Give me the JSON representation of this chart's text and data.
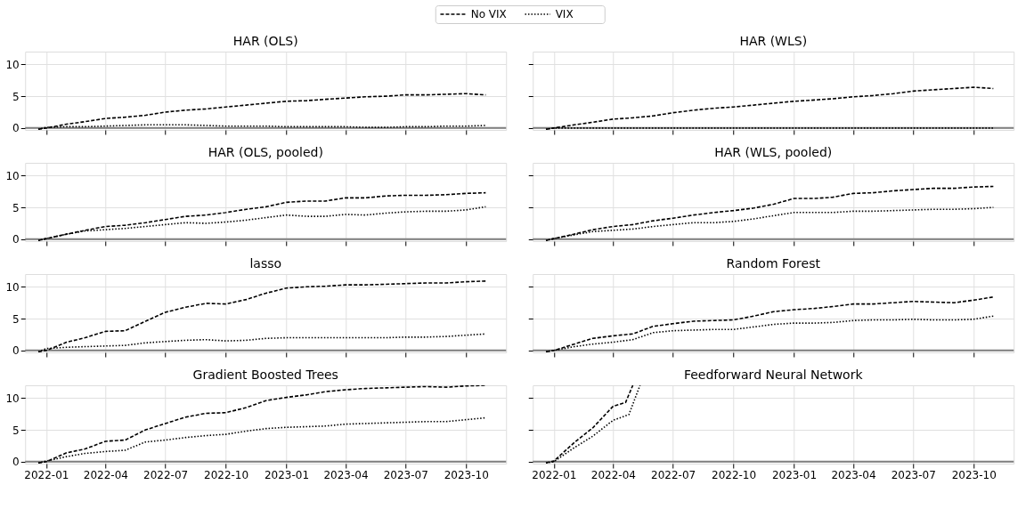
{
  "chart_data": [
    {
      "type": "line",
      "title": "HAR (OLS)",
      "legend": "top",
      "grid": true,
      "tick_labels": "y",
      "marker": "none",
      "xlim": [
        "2021-11-30",
        "2023-12-01"
      ],
      "ylim": [
        -0.3,
        12
      ],
      "xticks": [
        "2022-01",
        "2022-04",
        "2022-07",
        "2022-10",
        "2023-01",
        "2023-04",
        "2023-07",
        "2023-10"
      ],
      "yticks": [
        0,
        5,
        10
      ],
      "ref_lines": [
        {
          "axis": "y",
          "value": 0,
          "label": null,
          "color": "#808080"
        }
      ],
      "x": [
        "2021-12-20",
        "2022-01-01",
        "2022-02-01",
        "2022-03-01",
        "2022-04-01",
        "2022-05-01",
        "2022-06-01",
        "2022-07-01",
        "2022-08-01",
        "2022-09-01",
        "2022-10-01",
        "2022-11-01",
        "2022-12-01",
        "2023-01-01",
        "2023-02-01",
        "2023-03-01",
        "2023-04-01",
        "2023-05-01",
        "2023-06-01",
        "2023-07-01",
        "2023-08-01",
        "2023-09-01",
        "2023-10-01",
        "2023-10-31"
      ],
      "series": [
        {
          "name": "No VIX",
          "color": "#000000",
          "line_style": "dashed",
          "values": [
            -0.2,
            0.0,
            0.6,
            1.0,
            1.5,
            1.7,
            2.0,
            2.5,
            2.8,
            3.0,
            3.3,
            3.6,
            3.9,
            4.2,
            4.3,
            4.5,
            4.7,
            4.9,
            5.0,
            5.2,
            5.2,
            5.3,
            5.4,
            5.2
          ]
        },
        {
          "name": "VIX",
          "color": "#000000",
          "line_style": "dotted",
          "values": [
            -0.2,
            0.1,
            0.2,
            0.2,
            0.3,
            0.4,
            0.5,
            0.5,
            0.5,
            0.4,
            0.3,
            0.3,
            0.3,
            0.2,
            0.2,
            0.2,
            0.2,
            0.1,
            0.1,
            0.2,
            0.2,
            0.3,
            0.3,
            0.4
          ]
        }
      ]
    },
    {
      "type": "line",
      "title": "HAR (WLS)",
      "grid": true,
      "tick_labels": false,
      "marker": "none",
      "xlim": [
        "2021-11-30",
        "2023-12-01"
      ],
      "ylim": [
        -0.3,
        12
      ],
      "xticks": [
        "2022-01",
        "2022-04",
        "2022-07",
        "2022-10",
        "2023-01",
        "2023-04",
        "2023-07",
        "2023-10"
      ],
      "yticks": [
        0,
        5,
        10
      ],
      "ref_lines": [
        {
          "axis": "y",
          "value": 0,
          "label": null,
          "color": "#808080"
        }
      ],
      "x": [
        "2021-12-20",
        "2022-01-01",
        "2022-02-01",
        "2022-03-01",
        "2022-04-01",
        "2022-05-01",
        "2022-06-01",
        "2022-07-01",
        "2022-08-01",
        "2022-09-01",
        "2022-10-01",
        "2022-11-01",
        "2022-12-01",
        "2023-01-01",
        "2023-02-01",
        "2023-03-01",
        "2023-04-01",
        "2023-05-01",
        "2023-06-01",
        "2023-07-01",
        "2023-08-01",
        "2023-09-01",
        "2023-10-01",
        "2023-10-31"
      ],
      "series": [
        {
          "name": "No VIX",
          "color": "#000000",
          "line_style": "dashed",
          "values": [
            -0.2,
            0.0,
            0.5,
            0.9,
            1.4,
            1.6,
            1.9,
            2.4,
            2.8,
            3.1,
            3.3,
            3.6,
            3.9,
            4.2,
            4.4,
            4.6,
            4.9,
            5.1,
            5.4,
            5.8,
            6.0,
            6.2,
            6.4,
            6.2
          ]
        },
        {
          "name": "VIX",
          "color": "#000000",
          "line_style": "dotted",
          "values": [
            -0.2,
            0.0,
            0.0,
            0.0,
            0.0,
            0.0,
            0.0,
            0.0,
            0.0,
            0.0,
            0.0,
            0.0,
            0.0,
            0.0,
            0.0,
            0.0,
            0.0,
            0.0,
            0.0,
            0.0,
            0.0,
            0.0,
            0.0,
            0.0
          ]
        }
      ]
    },
    {
      "type": "line",
      "title": "HAR (OLS, pooled)",
      "grid": true,
      "tick_labels": "y",
      "marker": "none",
      "xlim": [
        "2021-11-30",
        "2023-12-01"
      ],
      "ylim": [
        -0.3,
        12
      ],
      "xticks": [
        "2022-01",
        "2022-04",
        "2022-07",
        "2022-10",
        "2023-01",
        "2023-04",
        "2023-07",
        "2023-10"
      ],
      "yticks": [
        0,
        5,
        10
      ],
      "ref_lines": [
        {
          "axis": "y",
          "value": 0,
          "label": null,
          "color": "#808080"
        }
      ],
      "x": [
        "2021-12-20",
        "2022-01-01",
        "2022-02-01",
        "2022-03-01",
        "2022-04-01",
        "2022-05-01",
        "2022-06-01",
        "2022-07-01",
        "2022-08-01",
        "2022-09-01",
        "2022-10-01",
        "2022-11-01",
        "2022-12-01",
        "2023-01-01",
        "2023-02-01",
        "2023-03-01",
        "2023-04-01",
        "2023-05-01",
        "2023-06-01",
        "2023-07-01",
        "2023-08-01",
        "2023-09-01",
        "2023-10-01",
        "2023-10-31"
      ],
      "series": [
        {
          "name": "No VIX",
          "color": "#000000",
          "line_style": "dashed",
          "values": [
            -0.2,
            0.1,
            0.8,
            1.4,
            2.0,
            2.2,
            2.6,
            3.1,
            3.6,
            3.8,
            4.2,
            4.7,
            5.1,
            5.8,
            6.0,
            6.0,
            6.5,
            6.5,
            6.8,
            6.9,
            6.9,
            7.0,
            7.2,
            7.3
          ]
        },
        {
          "name": "VIX",
          "color": "#000000",
          "line_style": "dotted",
          "values": [
            -0.2,
            0.1,
            0.8,
            1.3,
            1.5,
            1.7,
            2.0,
            2.3,
            2.6,
            2.5,
            2.7,
            3.0,
            3.4,
            3.8,
            3.6,
            3.6,
            3.9,
            3.8,
            4.1,
            4.3,
            4.4,
            4.4,
            4.6,
            5.1
          ]
        }
      ]
    },
    {
      "type": "line",
      "title": "HAR (WLS, pooled)",
      "grid": true,
      "tick_labels": false,
      "marker": "none",
      "xlim": [
        "2021-11-30",
        "2023-12-01"
      ],
      "ylim": [
        -0.3,
        12
      ],
      "xticks": [
        "2022-01",
        "2022-04",
        "2022-07",
        "2022-10",
        "2023-01",
        "2023-04",
        "2023-07",
        "2023-10"
      ],
      "yticks": [
        0,
        5,
        10
      ],
      "ref_lines": [
        {
          "axis": "y",
          "value": 0,
          "label": null,
          "color": "#808080"
        }
      ],
      "x": [
        "2021-12-20",
        "2022-01-01",
        "2022-02-01",
        "2022-03-01",
        "2022-04-01",
        "2022-05-01",
        "2022-06-01",
        "2022-07-01",
        "2022-08-01",
        "2022-09-01",
        "2022-10-01",
        "2022-11-01",
        "2022-12-01",
        "2023-01-01",
        "2023-02-01",
        "2023-03-01",
        "2023-04-01",
        "2023-05-01",
        "2023-06-01",
        "2023-07-01",
        "2023-08-01",
        "2023-09-01",
        "2023-10-01",
        "2023-10-31"
      ],
      "series": [
        {
          "name": "No VIX",
          "color": "#000000",
          "line_style": "dashed",
          "values": [
            -0.2,
            0.1,
            0.8,
            1.5,
            2.0,
            2.3,
            2.9,
            3.3,
            3.8,
            4.2,
            4.5,
            4.9,
            5.5,
            6.4,
            6.4,
            6.6,
            7.2,
            7.3,
            7.6,
            7.8,
            8.0,
            8.0,
            8.2,
            8.3
          ]
        },
        {
          "name": "VIX",
          "color": "#000000",
          "line_style": "dotted",
          "values": [
            -0.2,
            0.1,
            0.7,
            1.2,
            1.4,
            1.6,
            2.0,
            2.3,
            2.6,
            2.6,
            2.8,
            3.2,
            3.7,
            4.2,
            4.2,
            4.2,
            4.4,
            4.4,
            4.5,
            4.6,
            4.7,
            4.7,
            4.8,
            5.0
          ]
        }
      ]
    },
    {
      "type": "line",
      "title": "lasso",
      "grid": true,
      "tick_labels": "y",
      "marker": "none",
      "xlim": [
        "2021-11-30",
        "2023-12-01"
      ],
      "ylim": [
        -0.3,
        12
      ],
      "xticks": [
        "2022-01",
        "2022-04",
        "2022-07",
        "2022-10",
        "2023-01",
        "2023-04",
        "2023-07",
        "2023-10"
      ],
      "yticks": [
        0,
        5,
        10
      ],
      "ref_lines": [
        {
          "axis": "y",
          "value": 0,
          "label": null,
          "color": "#808080"
        }
      ],
      "x": [
        "2021-12-20",
        "2022-01-01",
        "2022-02-01",
        "2022-03-01",
        "2022-04-01",
        "2022-05-01",
        "2022-06-01",
        "2022-07-01",
        "2022-08-01",
        "2022-09-01",
        "2022-10-01",
        "2022-11-01",
        "2022-12-01",
        "2023-01-01",
        "2023-02-01",
        "2023-03-01",
        "2023-04-01",
        "2023-05-01",
        "2023-06-01",
        "2023-07-01",
        "2023-08-01",
        "2023-09-01",
        "2023-10-01",
        "2023-10-31"
      ],
      "series": [
        {
          "name": "No VIX",
          "color": "#000000",
          "line_style": "dashed",
          "values": [
            -0.2,
            0.0,
            1.3,
            2.0,
            3.0,
            3.1,
            4.6,
            6.0,
            6.8,
            7.4,
            7.3,
            8.0,
            9.0,
            9.8,
            10.0,
            10.1,
            10.3,
            10.3,
            10.4,
            10.5,
            10.6,
            10.6,
            10.8,
            10.9
          ]
        },
        {
          "name": "VIX",
          "color": "#000000",
          "line_style": "dotted",
          "values": [
            -0.2,
            0.3,
            0.5,
            0.6,
            0.7,
            0.8,
            1.2,
            1.4,
            1.6,
            1.7,
            1.5,
            1.6,
            1.9,
            2.0,
            2.0,
            2.0,
            2.0,
            2.0,
            2.0,
            2.1,
            2.1,
            2.2,
            2.4,
            2.6
          ]
        }
      ]
    },
    {
      "type": "line",
      "title": "Random Forest",
      "grid": true,
      "tick_labels": false,
      "marker": "none",
      "xlim": [
        "2021-11-30",
        "2023-12-01"
      ],
      "ylim": [
        -0.3,
        12
      ],
      "xticks": [
        "2022-01",
        "2022-04",
        "2022-07",
        "2022-10",
        "2023-01",
        "2023-04",
        "2023-07",
        "2023-10"
      ],
      "yticks": [
        0,
        5,
        10
      ],
      "ref_lines": [
        {
          "axis": "y",
          "value": 0,
          "label": null,
          "color": "#808080"
        }
      ],
      "x": [
        "2021-12-20",
        "2022-01-01",
        "2022-02-01",
        "2022-03-01",
        "2022-04-01",
        "2022-05-01",
        "2022-06-01",
        "2022-07-01",
        "2022-08-01",
        "2022-09-01",
        "2022-10-01",
        "2022-11-01",
        "2022-12-01",
        "2023-01-01",
        "2023-02-01",
        "2023-03-01",
        "2023-04-01",
        "2023-05-01",
        "2023-06-01",
        "2023-07-01",
        "2023-08-01",
        "2023-09-01",
        "2023-10-01",
        "2023-10-31"
      ],
      "series": [
        {
          "name": "No VIX",
          "color": "#000000",
          "line_style": "dashed",
          "values": [
            -0.2,
            0.0,
            1.0,
            1.9,
            2.3,
            2.6,
            3.8,
            4.2,
            4.6,
            4.7,
            4.8,
            5.4,
            6.1,
            6.4,
            6.6,
            6.9,
            7.3,
            7.3,
            7.5,
            7.7,
            7.6,
            7.5,
            7.9,
            8.4
          ]
        },
        {
          "name": "VIX",
          "color": "#000000",
          "line_style": "dotted",
          "values": [
            -0.2,
            0.0,
            0.6,
            1.0,
            1.3,
            1.7,
            2.8,
            3.1,
            3.2,
            3.3,
            3.3,
            3.7,
            4.1,
            4.3,
            4.3,
            4.4,
            4.7,
            4.8,
            4.8,
            4.9,
            4.8,
            4.8,
            4.9,
            5.4
          ]
        }
      ]
    },
    {
      "type": "line",
      "title": "Gradient Boosted Trees",
      "grid": true,
      "marker": "none",
      "xlim": [
        "2021-11-30",
        "2023-12-01"
      ],
      "ylim": [
        -0.3,
        12
      ],
      "xticks": [
        "2022-01",
        "2022-04",
        "2022-07",
        "2022-10",
        "2023-01",
        "2023-04",
        "2023-07",
        "2023-10"
      ],
      "yticks": [
        0,
        5,
        10
      ],
      "ref_lines": [
        {
          "axis": "y",
          "value": 0,
          "label": null,
          "color": "#808080"
        }
      ],
      "x": [
        "2021-12-20",
        "2022-01-01",
        "2022-02-01",
        "2022-03-01",
        "2022-04-01",
        "2022-05-01",
        "2022-06-01",
        "2022-07-01",
        "2022-08-01",
        "2022-09-01",
        "2022-10-01",
        "2022-11-01",
        "2022-12-01",
        "2023-01-01",
        "2023-02-01",
        "2023-03-01",
        "2023-04-01",
        "2023-05-01",
        "2023-06-01",
        "2023-07-01",
        "2023-08-01",
        "2023-09-01",
        "2023-10-01",
        "2023-10-31"
      ],
      "series": [
        {
          "name": "No VIX",
          "color": "#000000",
          "line_style": "dashed",
          "values": [
            -0.2,
            0.0,
            1.4,
            2.0,
            3.2,
            3.4,
            5.0,
            6.0,
            7.0,
            7.6,
            7.7,
            8.5,
            9.6,
            10.1,
            10.5,
            11.0,
            11.3,
            11.5,
            11.6,
            11.7,
            11.8,
            11.7,
            11.9,
            12.0
          ]
        },
        {
          "name": "VIX",
          "color": "#000000",
          "line_style": "dotted",
          "values": [
            -0.2,
            0.1,
            0.8,
            1.3,
            1.6,
            1.8,
            3.1,
            3.4,
            3.8,
            4.1,
            4.3,
            4.8,
            5.2,
            5.4,
            5.5,
            5.6,
            5.9,
            6.0,
            6.1,
            6.2,
            6.3,
            6.3,
            6.6,
            6.9
          ]
        }
      ]
    },
    {
      "type": "line",
      "title": "Feedforward Neural Network",
      "grid": true,
      "tick_labels": "x",
      "marker": "none",
      "xlim": [
        "2021-11-30",
        "2023-12-01"
      ],
      "ylim": [
        -0.3,
        12
      ],
      "xticks": [
        "2022-01",
        "2022-04",
        "2022-07",
        "2022-10",
        "2023-01",
        "2023-04",
        "2023-07",
        "2023-10"
      ],
      "yticks": [
        0,
        5,
        10
      ],
      "ref_lines": [
        {
          "axis": "y",
          "value": 0,
          "label": null,
          "color": "#808080"
        }
      ],
      "series": [
        {
          "name": "No VIX",
          "color": "#000000",
          "line_style": "dashed",
          "x": [
            "2021-12-20",
            "2022-01-01",
            "2022-02-01",
            "2022-03-01",
            "2022-04-01",
            "2022-04-20",
            "2022-05-01"
          ],
          "values": [
            -0.2,
            0.1,
            3.0,
            5.3,
            8.7,
            9.3,
            12.0
          ]
        },
        {
          "name": "VIX",
          "color": "#000000",
          "line_style": "dotted",
          "x": [
            "2021-12-20",
            "2022-01-01",
            "2022-02-01",
            "2022-03-01",
            "2022-04-01",
            "2022-04-25",
            "2022-05-12"
          ],
          "values": [
            -0.2,
            0.0,
            2.2,
            4.0,
            6.5,
            7.4,
            12.0
          ]
        }
      ]
    }
  ]
}
